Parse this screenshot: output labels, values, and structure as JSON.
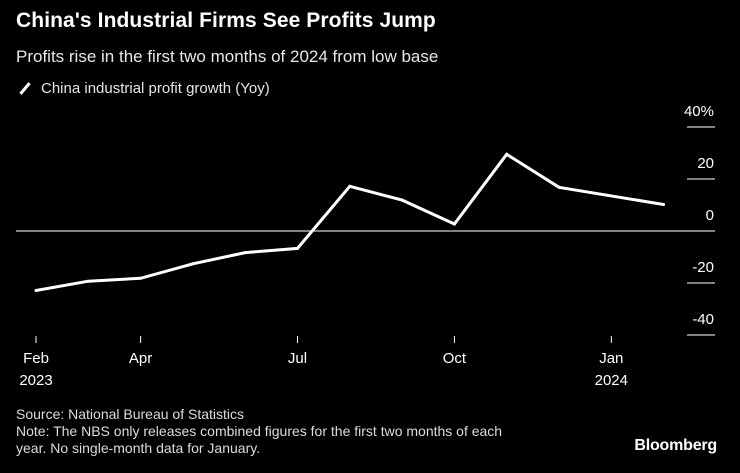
{
  "chart_data": {
    "type": "line",
    "title": "China's Industrial Firms See Profits Jump",
    "subtitle": "Profits rise in the first two months of 2024 from low base",
    "series": [
      {
        "name": "China industrial profit growth (Yoy)",
        "x": [
          "2023-02",
          "2023-03",
          "2023-04",
          "2023-05",
          "2023-06",
          "2023-07",
          "2023-08",
          "2023-09",
          "2023-10",
          "2023-11",
          "2023-12",
          "2024-02"
        ],
        "values": [
          -22.9,
          -19.3,
          -18.2,
          -12.6,
          -8.3,
          -6.7,
          17.2,
          11.9,
          2.7,
          29.5,
          16.8,
          10.2
        ]
      }
    ],
    "x_ticks": [
      {
        "month": 0,
        "label": "Feb",
        "year": "2023"
      },
      {
        "month": 2,
        "label": "Apr",
        "year": ""
      },
      {
        "month": 5,
        "label": "Jul",
        "year": ""
      },
      {
        "month": 8,
        "label": "Oct",
        "year": ""
      },
      {
        "month": 11,
        "label": "Jan",
        "year": "2024"
      }
    ],
    "y_ticks": [
      {
        "value": 40,
        "label": "40%"
      },
      {
        "value": 20,
        "label": "20"
      },
      {
        "value": 0,
        "label": "0"
      },
      {
        "value": -20,
        "label": "-20"
      },
      {
        "value": -40,
        "label": "-40"
      }
    ],
    "ylim": [
      -40,
      40
    ],
    "xlim": [
      0,
      12
    ],
    "legend": "top-left"
  },
  "footer": {
    "source": "Source: National Bureau of Statistics",
    "note_line1": "Note: The NBS only releases combined figures for the first two months of each",
    "note_line2": "year. No single-month data for January."
  },
  "brand": "Bloomberg",
  "colors": {
    "background": "#000000",
    "line": "#ffffff",
    "axis": "#ffffff",
    "text": "#ffffff"
  }
}
